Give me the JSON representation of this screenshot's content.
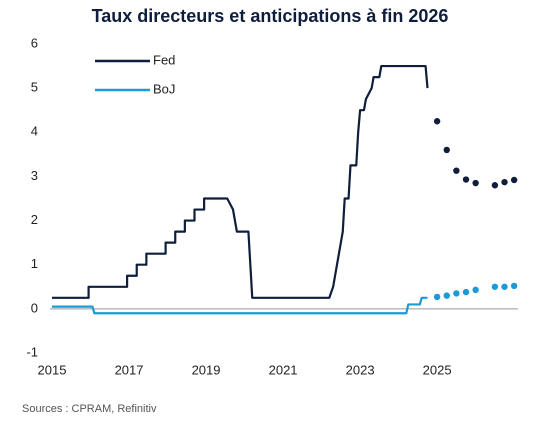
{
  "chart_data": {
    "type": "line",
    "title": "Taux directeurs et anticipations à fin 2026",
    "source": "Sources : CPRAM, Refinitiv",
    "xlim": [
      2015,
      2027.1
    ],
    "ylim": [
      -1,
      6
    ],
    "xticks": [
      2015,
      2017,
      2019,
      2021,
      2023,
      2025
    ],
    "yticks": [
      -1,
      0,
      1,
      2,
      3,
      4,
      5,
      6
    ],
    "grid": false,
    "legend": "upper-left",
    "series": [
      {
        "name": "Fed",
        "color": "#0f1e3c",
        "style": "line",
        "x": [
          2015,
          2015.95,
          2015.95,
          2016.95,
          2016.95,
          2017.2,
          2017.2,
          2017.45,
          2017.45,
          2017.95,
          2017.95,
          2018.2,
          2018.2,
          2018.45,
          2018.45,
          2018.7,
          2018.7,
          2018.95,
          2018.95,
          2019.55,
          2019.7,
          2019.75,
          2019.8,
          2020.1,
          2020.2,
          2022.2,
          2022.3,
          2022.4,
          2022.55,
          2022.6,
          2022.7,
          2022.75,
          2022.9,
          2022.95,
          2023.0,
          2023.1,
          2023.15,
          2023.3,
          2023.35,
          2023.5,
          2023.55,
          2024.7,
          2024.75
        ],
        "values": [
          0.25,
          0.25,
          0.5,
          0.5,
          0.75,
          0.75,
          1.0,
          1.0,
          1.25,
          1.25,
          1.5,
          1.5,
          1.75,
          1.75,
          2.0,
          2.0,
          2.25,
          2.25,
          2.5,
          2.5,
          2.25,
          2.0,
          1.75,
          1.75,
          0.25,
          0.25,
          0.5,
          1.0,
          1.75,
          2.5,
          2.5,
          3.25,
          3.25,
          4.0,
          4.5,
          4.5,
          4.75,
          5.0,
          5.25,
          5.25,
          5.5,
          5.5,
          5.0
        ]
      },
      {
        "name": "BoJ",
        "color": "#1a9ad6",
        "style": "line",
        "x": [
          2015,
          2016.05,
          2016.1,
          2024.2,
          2024.25,
          2024.55,
          2024.6,
          2024.75
        ],
        "values": [
          0.05,
          0.05,
          -0.1,
          -0.1,
          0.1,
          0.1,
          0.25,
          0.25
        ]
      },
      {
        "color": "#0f1e3c",
        "style": "dots",
        "x": [
          2025.0,
          2025.25,
          2025.5,
          2025.75,
          2026.0,
          2026.5,
          2026.75,
          2027.0
        ],
        "values": [
          4.25,
          3.6,
          3.13,
          2.93,
          2.85,
          2.8,
          2.87,
          2.92
        ]
      },
      {
        "color": "#1a9ad6",
        "style": "dots",
        "x": [
          2025.0,
          2025.25,
          2025.5,
          2025.75,
          2026.0,
          2026.5,
          2026.75,
          2027.0
        ],
        "values": [
          0.27,
          0.3,
          0.35,
          0.38,
          0.43,
          0.5,
          0.5,
          0.52
        ]
      }
    ]
  }
}
